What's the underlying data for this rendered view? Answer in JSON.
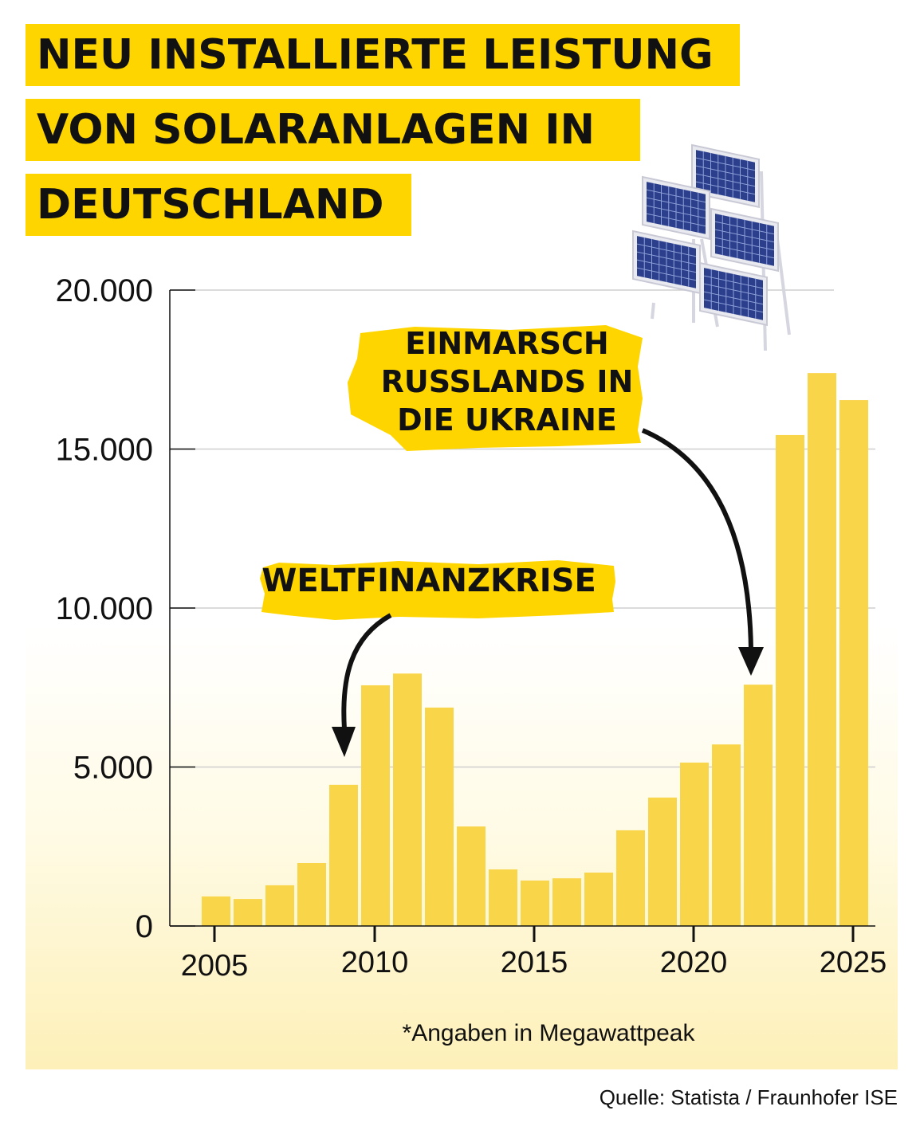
{
  "title_lines": [
    "NEU INSTALLIERTE LEISTUNG",
    "VON SOLARANLAGEN IN",
    "DEUTSCHLAND"
  ],
  "colors": {
    "accent": "#FFD500",
    "bar": "#F9D54A",
    "text": "#111111"
  },
  "illustration": "solar-panels-icon",
  "chart_data": {
    "type": "bar",
    "title": "NEU INSTALLIERTE LEISTUNG VON SOLARANLAGEN IN DEUTSCHLAND",
    "categories": [
      2005,
      2006,
      2007,
      2008,
      2009,
      2010,
      2011,
      2012,
      2013,
      2014,
      2015,
      2016,
      2017,
      2018,
      2019,
      2020,
      2021,
      2022,
      2023,
      2024,
      2025
    ],
    "values": [
      930,
      850,
      1280,
      1980,
      4440,
      7570,
      7940,
      6870,
      3130,
      1780,
      1430,
      1500,
      1680,
      3010,
      4040,
      5140,
      5710,
      7590,
      15440,
      17390,
      16540
    ],
    "ylim": [
      0,
      20000
    ],
    "yticks": [
      0,
      5000,
      10000,
      15000,
      20000
    ],
    "ytick_labels": [
      "0",
      "5.000",
      "10.000",
      "15.000",
      "20.000"
    ],
    "xticks": [
      2005,
      2010,
      2015,
      2020,
      2025
    ],
    "xtick_labels": [
      "2005",
      "2010",
      "2015",
      "2020",
      "2025"
    ],
    "grid": true,
    "unit_note": "*Angaben in Megawattpeak",
    "annotations": [
      {
        "text": "WELTFINANZKRISE",
        "points_to": 2009
      },
      {
        "text_lines": [
          "EINMARSCH",
          "RUSSLANDS IN",
          "DIE UKRAINE"
        ],
        "points_to": 2022
      }
    ]
  },
  "source": "Quelle: Statista / Fraunhofer ISE"
}
